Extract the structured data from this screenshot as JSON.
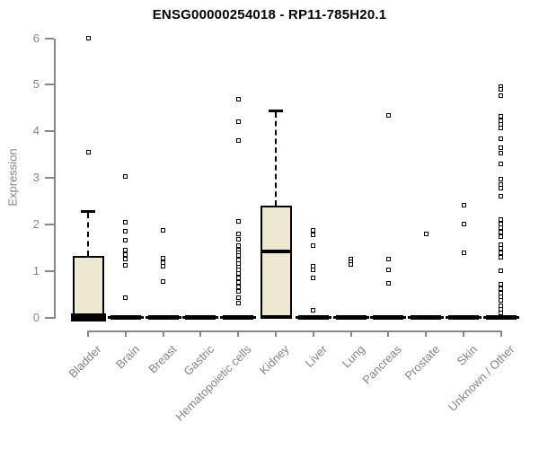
{
  "title": "ENSG00000254018 - RP11-785H20.1",
  "y_axis": {
    "label": "Expression",
    "ticks": [
      0,
      1,
      2,
      3,
      4,
      5,
      6
    ]
  },
  "colors": {
    "background": "#ffffff",
    "box-fill": "#EDE9D0",
    "ink": "#000000",
    "axis": "#878787",
    "label": "#848484",
    "title": "#000000"
  },
  "chart_data": {
    "type": "boxplot",
    "title": "ENSG00000254018 - RP11-785H20.1",
    "xlabel": "",
    "ylabel": "Expression",
    "ylim": [
      0,
      6
    ],
    "yticks": [
      0,
      1,
      2,
      3,
      4,
      5,
      6
    ],
    "grid": false,
    "categories": [
      "Bladder",
      "Brain",
      "Breast",
      "Gastric",
      "Hematopoietic cells",
      "Kidney",
      "Liver",
      "Lung",
      "Pancreas",
      "Prostate",
      "Skin",
      "Unknown / Other"
    ],
    "series": [
      {
        "category": "Bladder",
        "box": {
          "whisker_low": 0,
          "q1": 0,
          "median": 0,
          "q3": 1.32,
          "whisker_high": 2.29
        },
        "outliers": [
          3.55,
          6.0
        ]
      },
      {
        "category": "Brain",
        "box": {
          "whisker_low": 0,
          "q1": 0,
          "median": 0,
          "q3": 0,
          "whisker_high": 0
        },
        "outliers": [
          3.03,
          2.04,
          1.85,
          1.65,
          1.45,
          1.35,
          1.26,
          1.12,
          0.42
        ]
      },
      {
        "category": "Breast",
        "box": {
          "whisker_low": 0,
          "q1": 0,
          "median": 0,
          "q3": 0,
          "whisker_high": 0
        },
        "outliers": [
          1.88,
          1.27,
          1.18,
          1.1,
          0.78
        ]
      },
      {
        "category": "Gastric",
        "box": {
          "whisker_low": 0,
          "q1": 0,
          "median": 0,
          "q3": 0,
          "whisker_high": 0
        },
        "outliers": []
      },
      {
        "category": "Hematopoietic cells",
        "box": {
          "whisker_low": 0,
          "q1": 0,
          "median": 0,
          "q3": 0,
          "whisker_high": 0
        },
        "outliers": [
          4.68,
          4.2,
          3.8,
          2.07,
          1.79,
          1.68,
          1.55,
          1.45,
          1.38,
          1.33,
          1.23,
          1.16,
          1.09,
          1.02,
          0.95,
          0.85,
          0.75,
          0.65,
          0.55,
          0.43,
          0.3
        ]
      },
      {
        "category": "Kidney",
        "box": {
          "whisker_low": 0,
          "q1": 0,
          "median": 1.42,
          "q3": 2.4,
          "whisker_high": 4.45
        },
        "outliers": []
      },
      {
        "category": "Liver",
        "box": {
          "whisker_low": 0,
          "q1": 0,
          "median": 0,
          "q3": 0,
          "whisker_high": 0
        },
        "outliers": [
          1.88,
          1.78,
          1.55,
          1.1,
          1.03,
          0.85,
          0.16
        ]
      },
      {
        "category": "Lung",
        "box": {
          "whisker_low": 0,
          "q1": 0,
          "median": 0,
          "q3": 0,
          "whisker_high": 0
        },
        "outliers": [
          1.26,
          1.2,
          1.13
        ]
      },
      {
        "category": "Pancreas",
        "box": {
          "whisker_low": 0,
          "q1": 0,
          "median": 0,
          "q3": 0,
          "whisker_high": 0
        },
        "outliers": [
          4.35,
          1.26,
          1.03,
          0.73
        ]
      },
      {
        "category": "Prostate",
        "box": {
          "whisker_low": 0,
          "q1": 0,
          "median": 0,
          "q3": 0,
          "whisker_high": 0
        },
        "outliers": [
          1.79
        ]
      },
      {
        "category": "Skin",
        "box": {
          "whisker_low": 0,
          "q1": 0,
          "median": 0,
          "q3": 0,
          "whisker_high": 0
        },
        "outliers": [
          2.42,
          2.01,
          1.39
        ]
      },
      {
        "category": "Unknown / Other",
        "box": {
          "whisker_low": 0,
          "q1": 0,
          "median": 0,
          "q3": 0,
          "whisker_high": 0
        },
        "outliers": [
          4.96,
          4.91,
          4.77,
          4.32,
          4.23,
          4.15,
          4.08,
          3.83,
          3.65,
          3.54,
          3.3,
          2.97,
          2.85,
          2.77,
          2.61,
          2.11,
          2.01,
          1.93,
          1.83,
          1.74,
          1.57,
          1.48,
          1.39,
          1.29,
          1.0,
          0.71,
          0.62,
          0.53,
          0.44,
          0.36,
          0.26,
          0.18,
          0.1
        ]
      }
    ]
  }
}
